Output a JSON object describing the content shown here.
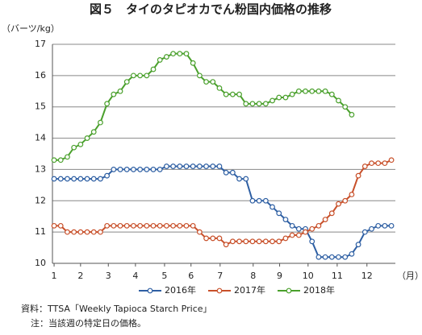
{
  "chart_data": {
    "type": "line",
    "title": "図５　タイのタピオカでん粉国内価格の推移",
    "y_label": "（バーツ/kg）",
    "x_label": "（月）",
    "source": "資料：TTSA「Weekly Tapioca Starch Price」",
    "note": "注：当該週の特定日の価格。",
    "x": [
      1,
      2,
      3,
      4,
      5,
      6,
      7,
      8,
      9,
      10,
      11,
      12,
      13,
      14,
      15,
      16,
      17,
      18,
      19,
      20,
      21,
      22,
      23,
      24,
      25,
      26,
      27,
      28,
      29,
      30,
      31,
      32,
      33,
      34,
      35,
      36,
      37,
      38,
      39,
      40,
      41,
      42,
      43,
      44,
      45,
      46,
      47,
      48,
      49,
      50,
      51,
      52
    ],
    "xlim": [
      0.75,
      52.6
    ],
    "xticks": [
      {
        "value": 1,
        "label": "1"
      },
      {
        "value": 5.0,
        "label": "2"
      },
      {
        "value": 9.2,
        "label": "3"
      },
      {
        "value": 13.3,
        "label": "4"
      },
      {
        "value": 17.7,
        "label": "5"
      },
      {
        "value": 21.7,
        "label": "6"
      },
      {
        "value": 26.1,
        "label": "7"
      },
      {
        "value": 31.1,
        "label": "8"
      },
      {
        "value": 35.1,
        "label": "9"
      },
      {
        "value": 39.4,
        "label": "10"
      },
      {
        "value": 43.8,
        "label": "11"
      },
      {
        "value": 48.3,
        "label": "12"
      }
    ],
    "ylim": [
      10,
      17
    ],
    "yticks": [
      10,
      11,
      12,
      13,
      14,
      15,
      16,
      17
    ],
    "grid": true,
    "legend": "bottom",
    "series": [
      {
        "name": "2016年",
        "color": "#2e5fa3",
        "values": [
          12.7,
          12.7,
          12.7,
          12.7,
          12.7,
          12.7,
          12.7,
          12.7,
          12.8,
          13.0,
          13.0,
          13.0,
          13.0,
          13.0,
          13.0,
          13.0,
          13.0,
          13.1,
          13.1,
          13.1,
          13.1,
          13.1,
          13.1,
          13.1,
          13.1,
          13.1,
          12.9,
          12.9,
          12.7,
          12.7,
          12.0,
          12.0,
          12.0,
          11.8,
          11.6,
          11.4,
          11.2,
          11.1,
          11.1,
          10.7,
          10.2,
          10.2,
          10.2,
          10.2,
          10.2,
          10.3,
          10.6,
          11.0,
          11.1,
          11.2,
          11.2,
          11.2
        ]
      },
      {
        "name": "2017年",
        "color": "#c8502a",
        "values": [
          11.2,
          11.2,
          11.0,
          11.0,
          11.0,
          11.0,
          11.0,
          11.0,
          11.2,
          11.2,
          11.2,
          11.2,
          11.2,
          11.2,
          11.2,
          11.2,
          11.2,
          11.2,
          11.2,
          11.2,
          11.2,
          11.2,
          11.0,
          10.8,
          10.8,
          10.8,
          10.6,
          10.7,
          10.7,
          10.7,
          10.7,
          10.7,
          10.7,
          10.7,
          10.7,
          10.8,
          10.9,
          10.9,
          11.0,
          11.1,
          11.2,
          11.4,
          11.6,
          11.9,
          12.0,
          12.2,
          12.8,
          13.1,
          13.2,
          13.2,
          13.2,
          13.3
        ]
      },
      {
        "name": "2018年",
        "color": "#4aa02c",
        "values": [
          13.3,
          13.3,
          13.4,
          13.7,
          13.8,
          14.0,
          14.2,
          14.5,
          15.1,
          15.4,
          15.5,
          15.8,
          16.0,
          16.0,
          16.0,
          16.2,
          16.5,
          16.6,
          16.7,
          16.7,
          16.7,
          16.4,
          16.0,
          15.8,
          15.8,
          15.6,
          15.4,
          15.4,
          15.4,
          15.1,
          15.1,
          15.1,
          15.1,
          15.2,
          15.3,
          15.3,
          15.4,
          15.5,
          15.5,
          15.5,
          15.5,
          15.5,
          15.4,
          15.2,
          15.0,
          14.75,
          null,
          null,
          null,
          null,
          null,
          null
        ]
      }
    ]
  }
}
